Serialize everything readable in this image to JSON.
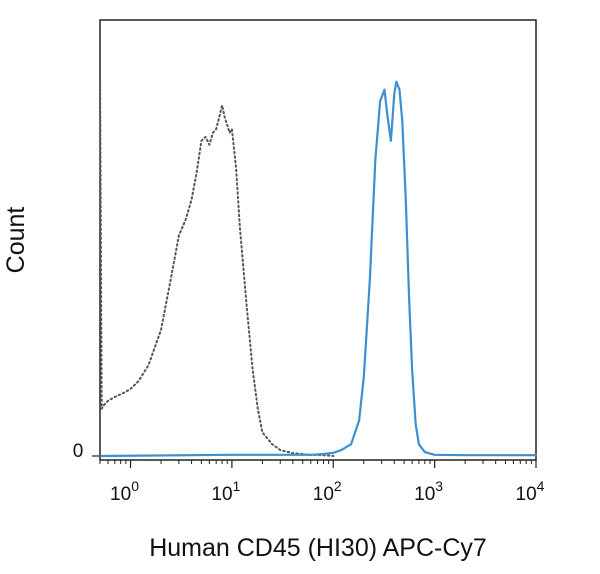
{
  "chart_data": {
    "type": "line",
    "title": "",
    "xlabel": "Human CD45 (HI30) APC-Cy7",
    "ylabel": "Count",
    "x_scale": "log",
    "xlim": [
      0.5,
      10000
    ],
    "ylim": [
      0,
      100
    ],
    "grid": false,
    "legend": "none",
    "x_ticks": [
      {
        "value": 1,
        "base": "10",
        "exp": "0"
      },
      {
        "value": 10,
        "base": "10",
        "exp": "1"
      },
      {
        "value": 100,
        "base": "10",
        "exp": "2"
      },
      {
        "value": 1000,
        "base": "10",
        "exp": "3"
      },
      {
        "value": 10000,
        "base": "10",
        "exp": "4"
      }
    ],
    "y_ticks": [
      {
        "value": 0,
        "label": "0"
      }
    ],
    "series": [
      {
        "style": "dotted",
        "color": "#555555",
        "x": [
          0.5,
          0.52,
          0.55,
          0.6,
          0.7,
          0.85,
          1.0,
          1.2,
          1.5,
          2.0,
          2.5,
          3.0,
          3.5,
          4.0,
          4.5,
          5.0,
          5.5,
          6.0,
          6.5,
          7.0,
          7.5,
          8.0,
          8.5,
          9.0,
          9.5,
          10.0,
          11.0,
          12.0,
          14.0,
          16.0,
          18.0,
          20.0,
          25.0,
          30.0,
          40.0,
          60.0,
          80.0,
          100.0
        ],
        "y": [
          100,
          12,
          13,
          14,
          15,
          16,
          17,
          19,
          23,
          32,
          45,
          56,
          60,
          65,
          72,
          80,
          81,
          79,
          82,
          83,
          86,
          89,
          86,
          84,
          82,
          83,
          73,
          58,
          38,
          22,
          12,
          6,
          3,
          1.5,
          0.7,
          0.3,
          0.2,
          0
        ]
      },
      {
        "style": "solid",
        "color": "#3d8fd1",
        "x": [
          0.5,
          10.0,
          60.0,
          80.0,
          100.0,
          120.0,
          150.0,
          180.0,
          200.0,
          230.0,
          260.0,
          290.0,
          320.0,
          340.0,
          370.0,
          400.0,
          420.0,
          450.0,
          480.0,
          520.0,
          560.0,
          600.0,
          650.0,
          700.0,
          800.0,
          1000.0,
          2000.0,
          5000.0,
          10000.0
        ],
        "y": [
          0,
          0.3,
          0.3,
          0.5,
          0.8,
          1.5,
          3.0,
          9.0,
          20,
          45,
          75,
          90,
          93,
          87,
          80,
          92,
          95,
          93,
          85,
          65,
          40,
          22,
          8,
          3,
          1,
          0.3,
          0.2,
          0.2,
          0.2
        ]
      }
    ]
  }
}
